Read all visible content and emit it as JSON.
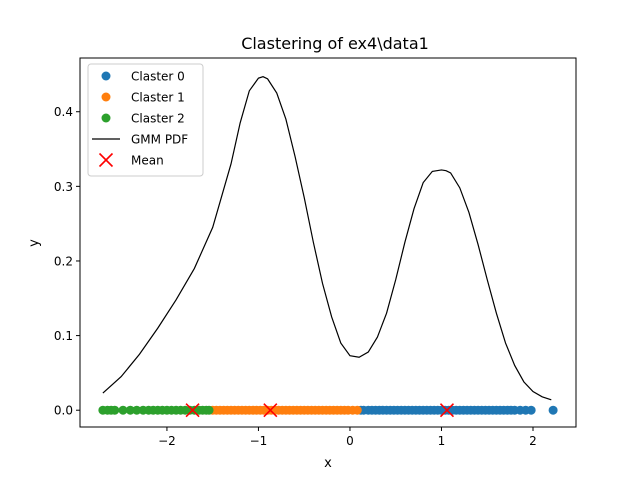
{
  "chart_data": {
    "type": "scatter",
    "title": "Clastering of ex4\\data1",
    "xlabel": "x",
    "ylabel": "y",
    "xlim": [
      -2.95,
      2.47
    ],
    "ylim": [
      -0.0225,
      0.472
    ],
    "xticks": [
      -2,
      -1,
      0,
      1,
      2
    ],
    "xtick_labels": [
      "−2",
      "−1",
      "0",
      "1",
      "2"
    ],
    "yticks": [
      0.0,
      0.1,
      0.2,
      0.3,
      0.4
    ],
    "ytick_labels": [
      "0.0",
      "0.1",
      "0.2",
      "0.3",
      "0.4"
    ],
    "grid": false,
    "legend_position": "top-left",
    "series": [
      {
        "name": "Claster 0",
        "kind": "scatter",
        "color": "#1f77b4",
        "x": [
          0.12,
          0.15,
          0.2,
          0.24,
          0.28,
          0.32,
          0.36,
          0.4,
          0.44,
          0.48,
          0.52,
          0.56,
          0.6,
          0.64,
          0.68,
          0.72,
          0.76,
          0.8,
          0.84,
          0.88,
          0.92,
          0.96,
          1.0,
          1.04,
          1.08,
          1.12,
          1.16,
          1.2,
          1.24,
          1.28,
          1.32,
          1.36,
          1.4,
          1.44,
          1.48,
          1.52,
          1.56,
          1.6,
          1.64,
          1.68,
          1.72,
          1.76,
          1.8,
          1.86,
          1.92,
          1.98,
          2.22
        ],
        "y": [
          0,
          0,
          0,
          0,
          0,
          0,
          0,
          0,
          0,
          0,
          0,
          0,
          0,
          0,
          0,
          0,
          0,
          0,
          0,
          0,
          0,
          0,
          0,
          0,
          0,
          0,
          0,
          0,
          0,
          0,
          0,
          0,
          0,
          0,
          0,
          0,
          0,
          0,
          0,
          0,
          0,
          0,
          0,
          0,
          0,
          0,
          0
        ]
      },
      {
        "name": "Claster 1",
        "kind": "scatter",
        "color": "#ff7f0e",
        "x": [
          -1.5,
          -1.46,
          -1.42,
          -1.38,
          -1.34,
          -1.3,
          -1.26,
          -1.22,
          -1.18,
          -1.14,
          -1.1,
          -1.06,
          -1.02,
          -0.98,
          -0.94,
          -0.9,
          -0.86,
          -0.82,
          -0.78,
          -0.74,
          -0.7,
          -0.66,
          -0.62,
          -0.58,
          -0.54,
          -0.5,
          -0.46,
          -0.42,
          -0.38,
          -0.34,
          -0.3,
          -0.26,
          -0.22,
          -0.18,
          -0.14,
          -0.1,
          -0.06,
          -0.02,
          0.03,
          0.08
        ],
        "y": [
          0,
          0,
          0,
          0,
          0,
          0,
          0,
          0,
          0,
          0,
          0,
          0,
          0,
          0,
          0,
          0,
          0,
          0,
          0,
          0,
          0,
          0,
          0,
          0,
          0,
          0,
          0,
          0,
          0,
          0,
          0,
          0,
          0,
          0,
          0,
          0,
          0,
          0,
          0,
          0
        ]
      },
      {
        "name": "Claster 2",
        "kind": "scatter",
        "color": "#2ca02c",
        "x": [
          -2.7,
          -2.65,
          -2.61,
          -2.57,
          -2.48,
          -2.4,
          -2.33,
          -2.26,
          -2.2,
          -2.15,
          -2.1,
          -2.05,
          -2.0,
          -1.95,
          -1.9,
          -1.85,
          -1.8,
          -1.75,
          -1.7,
          -1.65,
          -1.61,
          -1.57,
          -1.54
        ],
        "y": [
          0,
          0,
          0,
          0,
          0,
          0,
          0,
          0,
          0,
          0,
          0,
          0,
          0,
          0,
          0,
          0,
          0,
          0,
          0,
          0,
          0,
          0,
          0
        ]
      },
      {
        "name": "GMM PDF",
        "kind": "line",
        "color": "#000000",
        "x": [
          -2.7,
          -2.5,
          -2.3,
          -2.1,
          -1.9,
          -1.7,
          -1.5,
          -1.3,
          -1.2,
          -1.1,
          -1.0,
          -0.95,
          -0.9,
          -0.8,
          -0.7,
          -0.6,
          -0.5,
          -0.4,
          -0.3,
          -0.2,
          -0.1,
          0.0,
          0.1,
          0.2,
          0.3,
          0.4,
          0.5,
          0.6,
          0.7,
          0.8,
          0.9,
          1.0,
          1.05,
          1.1,
          1.2,
          1.3,
          1.4,
          1.5,
          1.6,
          1.7,
          1.8,
          1.9,
          2.0,
          2.1,
          2.2
        ],
        "y": [
          0.023,
          0.045,
          0.075,
          0.11,
          0.148,
          0.19,
          0.245,
          0.33,
          0.385,
          0.428,
          0.445,
          0.447,
          0.444,
          0.425,
          0.39,
          0.34,
          0.285,
          0.225,
          0.17,
          0.125,
          0.09,
          0.073,
          0.071,
          0.078,
          0.098,
          0.13,
          0.175,
          0.225,
          0.27,
          0.305,
          0.32,
          0.322,
          0.321,
          0.318,
          0.298,
          0.265,
          0.222,
          0.175,
          0.13,
          0.09,
          0.06,
          0.038,
          0.025,
          0.018,
          0.014
        ]
      },
      {
        "name": "Mean",
        "kind": "marker",
        "color": "#ff0000",
        "x": [
          -1.72,
          -0.87,
          1.06
        ],
        "y": [
          0,
          0,
          0
        ]
      }
    ]
  }
}
